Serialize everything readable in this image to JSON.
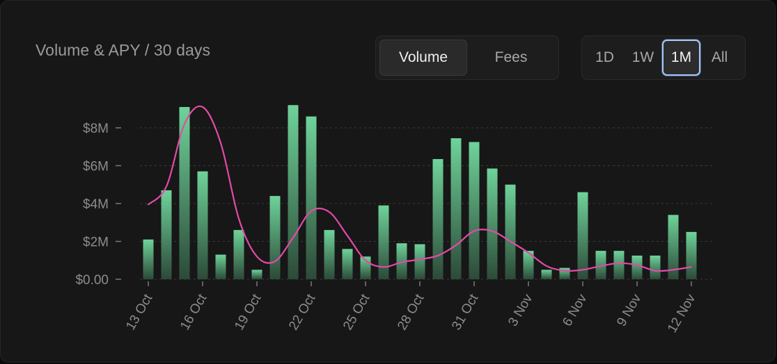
{
  "header": {
    "title": "Volume & APY / 30 days"
  },
  "type_toggle": {
    "options": [
      "Volume",
      "Fees"
    ],
    "selected": "Volume"
  },
  "range_toggle": {
    "options": [
      "1D",
      "1W",
      "1M",
      "All"
    ],
    "selected": "1M"
  },
  "colors": {
    "bar_top": "#6fd39a",
    "bar_bottom": "#2c4a38",
    "apy_line": "#e44aa8",
    "grid": "#3a3a3a"
  },
  "chart_data": {
    "type": "bar",
    "title": "Volume & APY / 30 days",
    "y_tick_labels": [
      "$0.00",
      "$2M",
      "$4M",
      "$6M",
      "$8M"
    ],
    "y_ticks": [
      0,
      2,
      4,
      6,
      8
    ],
    "ylim": [
      0,
      10
    ],
    "y_unit": "millions USD",
    "x_tick_labels": [
      "13 Oct",
      "16 Oct",
      "19 Oct",
      "22 Oct",
      "25 Oct",
      "28 Oct",
      "31 Oct",
      "3 Nov",
      "6 Nov",
      "9 Nov",
      "12 Nov"
    ],
    "categories": [
      "13 Oct",
      "14 Oct",
      "15 Oct",
      "16 Oct",
      "17 Oct",
      "18 Oct",
      "19 Oct",
      "20 Oct",
      "21 Oct",
      "22 Oct",
      "23 Oct",
      "24 Oct",
      "25 Oct",
      "26 Oct",
      "27 Oct",
      "28 Oct",
      "29 Oct",
      "30 Oct",
      "31 Oct",
      "1 Nov",
      "2 Nov",
      "3 Nov",
      "4 Nov",
      "5 Nov",
      "6 Nov",
      "7 Nov",
      "8 Nov",
      "9 Nov",
      "10 Nov",
      "11 Nov",
      "12 Nov"
    ],
    "series": [
      {
        "kind": "bar",
        "values": [
          2.1,
          4.7,
          9.1,
          5.7,
          1.3,
          2.6,
          0.5,
          4.4,
          9.2,
          8.6,
          2.6,
          1.6,
          1.2,
          3.9,
          1.9,
          1.85,
          6.35,
          7.45,
          7.25,
          5.85,
          5.0,
          1.5,
          0.5,
          0.6,
          4.6,
          1.5,
          1.5,
          1.25,
          1.25,
          3.4,
          2.5
        ]
      },
      {
        "kind": "line",
        "values": [
          3.95,
          4.9,
          8.2,
          9.1,
          7.2,
          3.2,
          1.2,
          0.95,
          2.2,
          3.6,
          3.55,
          2.3,
          1.0,
          0.65,
          0.9,
          1.05,
          1.25,
          1.8,
          2.55,
          2.55,
          2.0,
          1.4,
          0.7,
          0.45,
          0.5,
          0.7,
          0.85,
          0.75,
          0.45,
          0.5,
          0.65
        ]
      }
    ],
    "grid": true
  }
}
